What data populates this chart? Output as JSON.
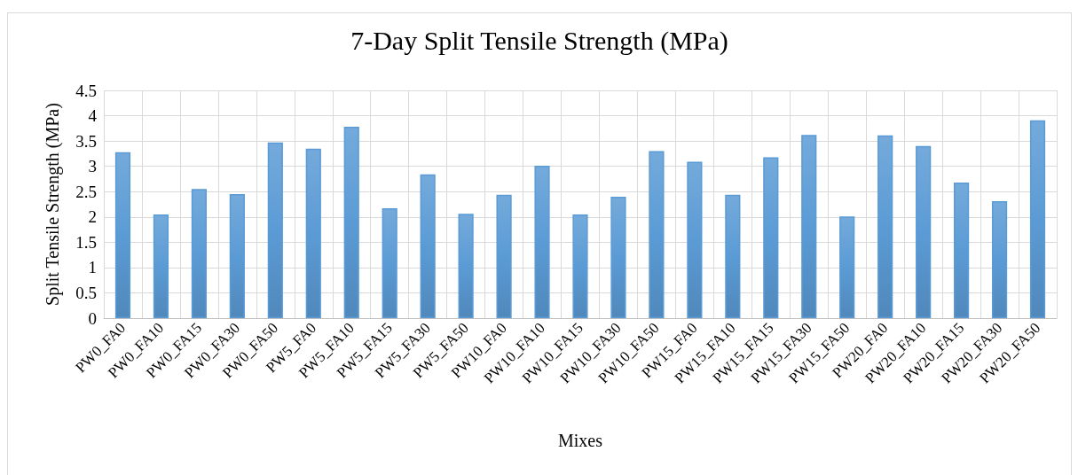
{
  "chart_data": {
    "type": "bar",
    "title": "7-Day Split Tensile Strength (MPa)",
    "xlabel": "Mixes",
    "ylabel": "Split Tensile Strength (MPa)",
    "categories": [
      "PW0_FA0",
      "PW0_FA10",
      "PW0_FA15",
      "PW0_FA30",
      "PW0_FA50",
      "PW5_FA0",
      "PW5_FA10",
      "PW5_FA15",
      "PW5_FA30",
      "PW5_FA50",
      "PW10_FA0",
      "PW10_FA10",
      "PW10_FA15",
      "PW10_FA30",
      "PW10_FA50",
      "PW15_FA0",
      "PW15_FA10",
      "PW15_FA15",
      "PW15_FA30",
      "PW15_FA50",
      "PW20_FA0",
      "PW20_FA10",
      "PW20_FA15",
      "PW20_FA30",
      "PW20_FA50"
    ],
    "values": [
      3.28,
      2.05,
      2.55,
      2.45,
      3.47,
      3.35,
      3.78,
      2.17,
      2.84,
      2.06,
      2.44,
      3.01,
      2.05,
      2.4,
      3.3,
      3.09,
      2.44,
      3.18,
      3.62,
      2.01,
      3.61,
      3.4,
      2.68,
      2.31,
      3.91
    ],
    "color": "#5b9bd5",
    "ylim": [
      0,
      4.5
    ],
    "yticks": [
      0,
      0.5,
      1,
      1.5,
      2,
      2.5,
      3,
      3.5,
      4,
      4.5
    ],
    "grid": true
  }
}
